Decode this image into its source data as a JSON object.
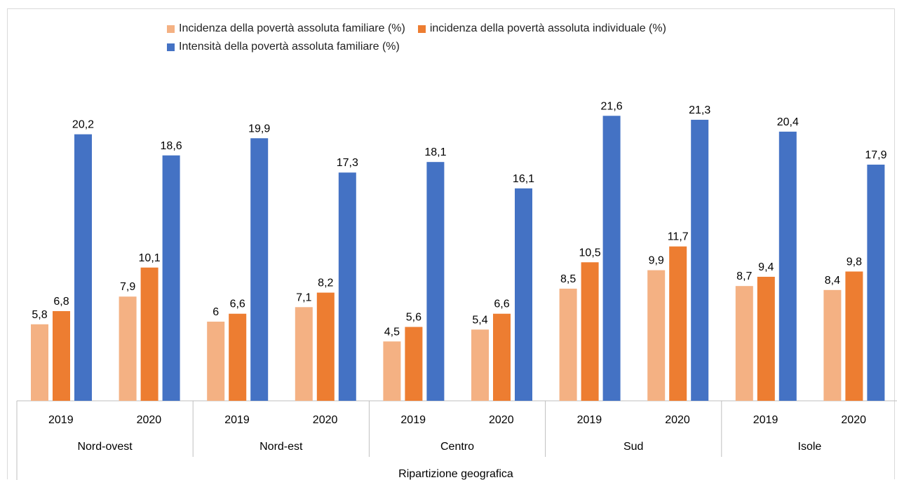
{
  "chart_data": {
    "type": "bar",
    "xlabel": "Ripartizione geografica",
    "groups": [
      {
        "name": "Nord-ovest",
        "years": [
          "2019",
          "2020"
        ]
      },
      {
        "name": "Nord-est",
        "years": [
          "2019",
          "2020"
        ]
      },
      {
        "name": "Centro",
        "years": [
          "2019",
          "2020"
        ]
      },
      {
        "name": "Sud",
        "years": [
          "2019",
          "2020"
        ]
      },
      {
        "name": "Isole",
        "years": [
          "2019",
          "2020"
        ]
      }
    ],
    "series": [
      {
        "name": "Incidenza della povertà assoluta familiare (%)",
        "color": "#f4b183",
        "values": [
          5.8,
          7.9,
          6,
          7.1,
          4.5,
          5.4,
          8.5,
          9.9,
          8.7,
          8.4
        ],
        "labels": [
          "5,8",
          "7,9",
          "6",
          "7,1",
          "4,5",
          "5,4",
          "8,5",
          "9,9",
          "8,7",
          "8,4"
        ]
      },
      {
        "name": "incidenza della povertà assoluta individuale (%)",
        "color": "#ed7d31",
        "values": [
          6.8,
          10.1,
          6.6,
          8.2,
          5.6,
          6.6,
          10.5,
          11.7,
          9.4,
          9.8
        ],
        "labels": [
          "6,8",
          "10,1",
          "6,6",
          "8,2",
          "5,6",
          "6,6",
          "10,5",
          "11,7",
          "9,4",
          "9,8"
        ]
      },
      {
        "name": "Intensità della povertà assoluta familiare (%)",
        "color": "#4472c4",
        "values": [
          20.2,
          18.6,
          19.9,
          17.3,
          18.1,
          16.1,
          21.6,
          21.3,
          20.4,
          17.9
        ],
        "labels": [
          "20,2",
          "18,6",
          "19,9",
          "17,3",
          "18,1",
          "16,1",
          "21,6",
          "21,3",
          "20,4",
          "17,9"
        ]
      }
    ],
    "ylim": [
      0,
      22
    ],
    "grid": false,
    "legend_position": "top"
  }
}
